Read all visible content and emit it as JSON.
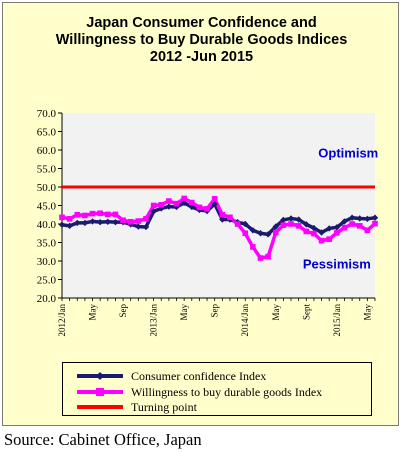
{
  "chart_data": {
    "type": "line",
    "title_lines": [
      "Japan Consumer Confidence and",
      "Willingness to Buy Durable Goods Indices",
      "2012 -Jun  2015"
    ],
    "xlabel": "",
    "ylabel": "",
    "ylim": [
      20,
      70
    ],
    "y_ticks": [
      "70.0",
      "65.0",
      "60.0",
      "55.0",
      "50.0",
      "45.0",
      "40.0",
      "35.0",
      "30.0",
      "25.0",
      "20.0"
    ],
    "x": [
      "2012/Jan",
      "2012/Feb",
      "2012/Mar",
      "2012/Apr",
      "2012/May",
      "2012/Jun",
      "2012/Jul",
      "2012/Aug",
      "2012/Sep",
      "2012/Oct",
      "2012/Nov",
      "2012/Dec",
      "2013/Jan",
      "2013/Feb",
      "2013/Mar",
      "2013/Apr",
      "2013/May",
      "2013/Jun",
      "2013/Jul",
      "2013/Aug",
      "2013/Sep",
      "2013/Oct",
      "2013/Nov",
      "2013/Dec",
      "2014/Jan",
      "2014/Feb",
      "2014/Mar",
      "2014/Apr",
      "2014/May",
      "2014/Jun",
      "2014/Jul",
      "2014/Aug",
      "2014/Sep",
      "2014/Oct",
      "2014/Nov",
      "2014/Dec",
      "2015/Jan",
      "2015/Feb",
      "2015/Mar",
      "2015/Apr",
      "2015/May",
      "2015/Jun"
    ],
    "x_tick_labels": [
      {
        "index": 0,
        "label": "2012/Jan"
      },
      {
        "index": 4,
        "label": "May"
      },
      {
        "index": 8,
        "label": "Sep"
      },
      {
        "index": 12,
        "label": "2013/Jan"
      },
      {
        "index": 16,
        "label": "May"
      },
      {
        "index": 20,
        "label": "Sep"
      },
      {
        "index": 24,
        "label": "2014/Jan"
      },
      {
        "index": 28,
        "label": "May"
      },
      {
        "index": 32,
        "label": "Sept"
      },
      {
        "index": 36,
        "label": "2015/Jan"
      },
      {
        "index": 40,
        "label": "May"
      }
    ],
    "series": [
      {
        "name": "Consumer confidence Index",
        "color": "#1a1a6e",
        "marker": "diamond",
        "values": [
          39.8,
          39.5,
          40.3,
          40.3,
          40.7,
          40.5,
          40.6,
          40.5,
          40.5,
          39.9,
          39.3,
          39.2,
          43.4,
          44.2,
          44.7,
          44.6,
          45.7,
          44.6,
          43.8,
          43.5,
          45.4,
          41.2,
          41.2,
          40.5,
          40.0,
          38.3,
          37.5,
          37.2,
          39.3,
          41.1,
          41.5,
          41.2,
          39.9,
          38.9,
          37.7,
          38.8,
          39.1,
          40.7,
          41.7,
          41.5,
          41.4,
          41.7
        ]
      },
      {
        "name": "Willingness to buy durable goods Index",
        "color": "#ff00ff",
        "marker": "square",
        "values": [
          41.8,
          41.4,
          42.5,
          42.3,
          42.8,
          42.9,
          42.6,
          42.6,
          41.0,
          40.6,
          40.8,
          41.4,
          45.0,
          45.2,
          46.2,
          45.5,
          46.9,
          45.8,
          44.5,
          44.1,
          46.8,
          42.5,
          41.8,
          40.0,
          37.5,
          33.8,
          30.8,
          31.2,
          37.7,
          39.7,
          40.0,
          39.5,
          38.0,
          37.4,
          35.5,
          35.9,
          37.6,
          39.0,
          40.0,
          39.5,
          38.3,
          40.1
        ]
      },
      {
        "name": "Turning point",
        "color": "#ff0000",
        "marker": "none",
        "constant": 50.0
      }
    ],
    "annotations": [
      {
        "text": "Optimism",
        "x_index": 37.5,
        "y": 58.0,
        "color": "#0000cc"
      },
      {
        "text": "Pessimism",
        "x_index": 36.0,
        "y": 28.0,
        "color": "#0000cc"
      }
    ],
    "grid": false,
    "legend_position": "bottom",
    "source": "Source: Cabinet Office, Japan"
  }
}
